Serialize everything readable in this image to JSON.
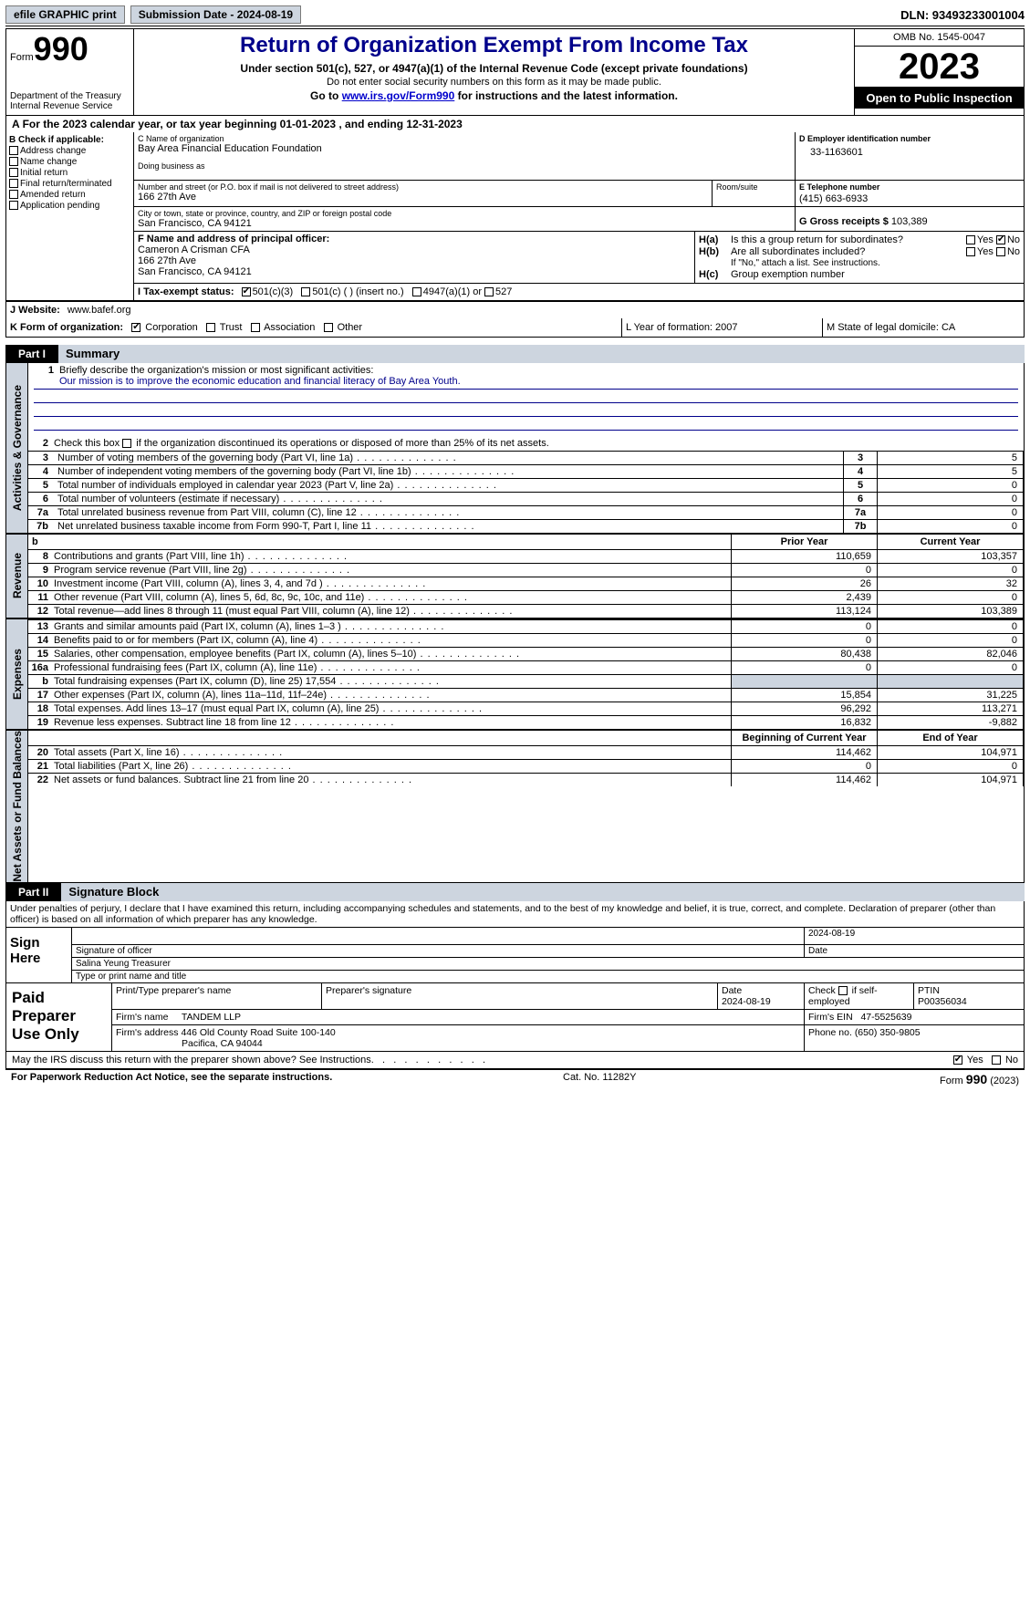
{
  "top_bar": {
    "efile_btn": "efile GRAPHIC print",
    "submission_label": "Submission Date - 2024-08-19",
    "dln": "DLN: 93493233001004"
  },
  "header": {
    "form_word": "Form",
    "form_num": "990",
    "dept": "Department of the Treasury\nInternal Revenue Service",
    "title": "Return of Organization Exempt From Income Tax",
    "sub1": "Under section 501(c), 527, or 4947(a)(1) of the Internal Revenue Code (except private foundations)",
    "sub2": "Do not enter social security numbers on this form as it may be made public.",
    "sub3_pre": "Go to ",
    "sub3_link": "www.irs.gov/Form990",
    "sub3_post": " for instructions and the latest information.",
    "omb": "OMB No. 1545-0047",
    "year": "2023",
    "inspect": "Open to Public Inspection"
  },
  "line_A": "For the 2023 calendar year, or tax year beginning 01-01-2023   , and ending 12-31-2023",
  "box_B": {
    "header": "B Check if applicable:",
    "opts": [
      "Address change",
      "Name change",
      "Initial return",
      "Final return/terminated",
      "Amended return",
      "Application pending"
    ]
  },
  "box_C": {
    "name_label": "C Name of organization",
    "name": "Bay Area Financial Education Foundation",
    "dba_label": "Doing business as",
    "addr_label": "Number and street (or P.O. box if mail is not delivered to street address)",
    "room_label": "Room/suite",
    "addr": "166 27th Ave",
    "city_label": "City or town, state or province, country, and ZIP or foreign postal code",
    "city": "San Francisco, CA  94121"
  },
  "box_D": {
    "label": "D Employer identification number",
    "value": "33-1163601"
  },
  "box_E": {
    "label": "E Telephone number",
    "value": "(415) 663-6933"
  },
  "box_G": {
    "label": "G Gross receipts $",
    "value": "103,389"
  },
  "box_F": {
    "label": "F  Name and address of principal officer:",
    "name": "Cameron A Crisman CFA",
    "addr1": "166 27th Ave",
    "addr2": "San Francisco, CA  94121"
  },
  "box_H": {
    "a_label": "H(a)",
    "a_text": "Is this a group return for subordinates?",
    "b_label": "H(b)",
    "b_text": "Are all subordinates included?",
    "b_note": "If \"No,\" attach a list. See instructions.",
    "c_label": "H(c)",
    "c_text": "Group exemption number",
    "yes": "Yes",
    "no": "No"
  },
  "row_I": {
    "label": "I   Tax-exempt status:",
    "opts": [
      "501(c)(3)",
      "501(c) (  ) (insert no.)",
      "4947(a)(1) or",
      "527"
    ]
  },
  "row_J": {
    "label": "J   Website:",
    "value": "www.bafef.org"
  },
  "row_K": {
    "label": "K Form of organization:",
    "opts": [
      "Corporation",
      "Trust",
      "Association",
      "Other"
    ],
    "L": "L Year of formation: 2007",
    "M": "M State of legal domicile: CA"
  },
  "part1": {
    "tab": "Part I",
    "title": "Summary"
  },
  "summary": {
    "l1_label": "1",
    "l1_text": "Briefly describe the organization's mission or most significant activities:",
    "l1_mission": "Our mission is to improve the economic education and financial literacy of Bay Area Youth.",
    "l2_label": "2",
    "l2_text": "Check this box         if the organization discontinued its operations or disposed of more than 25% of its net assets.",
    "lines": [
      {
        "n": "3",
        "d": "Number of voting members of the governing body (Part VI, line 1a)",
        "v": "5"
      },
      {
        "n": "4",
        "d": "Number of independent voting members of the governing body (Part VI, line 1b)",
        "v": "5"
      },
      {
        "n": "5",
        "d": "Total number of individuals employed in calendar year 2023 (Part V, line 2a)",
        "v": "0"
      },
      {
        "n": "6",
        "d": "Total number of volunteers (estimate if necessary)",
        "v": "0"
      },
      {
        "n": "7a",
        "d": "Total unrelated business revenue from Part VIII, column (C), line 12",
        "v": "0"
      },
      {
        "n": "7b",
        "d": "Net unrelated business taxable income from Form 990-T, Part I, line 11",
        "v": "0"
      }
    ],
    "vtab1": "Activities & Governance"
  },
  "revenue": {
    "vtab": "Revenue",
    "col1": "Prior Year",
    "col2": "Current Year",
    "rows": [
      {
        "n": "8",
        "d": "Contributions and grants (Part VIII, line 1h)",
        "py": "110,659",
        "cy": "103,357"
      },
      {
        "n": "9",
        "d": "Program service revenue (Part VIII, line 2g)",
        "py": "0",
        "cy": "0"
      },
      {
        "n": "10",
        "d": "Investment income (Part VIII, column (A), lines 3, 4, and 7d )",
        "py": "26",
        "cy": "32"
      },
      {
        "n": "11",
        "d": "Other revenue (Part VIII, column (A), lines 5, 6d, 8c, 9c, 10c, and 11e)",
        "py": "2,439",
        "cy": "0"
      },
      {
        "n": "12",
        "d": "Total revenue—add lines 8 through 11 (must equal Part VIII, column (A), line 12)",
        "py": "113,124",
        "cy": "103,389"
      }
    ]
  },
  "expenses": {
    "vtab": "Expenses",
    "rows": [
      {
        "n": "13",
        "d": "Grants and similar amounts paid (Part IX, column (A), lines 1–3 )",
        "py": "0",
        "cy": "0"
      },
      {
        "n": "14",
        "d": "Benefits paid to or for members (Part IX, column (A), line 4)",
        "py": "0",
        "cy": "0"
      },
      {
        "n": "15",
        "d": "Salaries, other compensation, employee benefits (Part IX, column (A), lines 5–10)",
        "py": "80,438",
        "cy": "82,046"
      },
      {
        "n": "16a",
        "d": "Professional fundraising fees (Part IX, column (A), line 11e)",
        "py": "0",
        "cy": "0"
      },
      {
        "n": "b",
        "d": "Total fundraising expenses (Part IX, column (D), line 25) 17,554",
        "py": "",
        "cy": "",
        "shade": true
      },
      {
        "n": "17",
        "d": "Other expenses (Part IX, column (A), lines 11a–11d, 11f–24e)",
        "py": "15,854",
        "cy": "31,225"
      },
      {
        "n": "18",
        "d": "Total expenses. Add lines 13–17 (must equal Part IX, column (A), line 25)",
        "py": "96,292",
        "cy": "113,271"
      },
      {
        "n": "19",
        "d": "Revenue less expenses. Subtract line 18 from line 12",
        "py": "16,832",
        "cy": "-9,882"
      }
    ]
  },
  "netassets": {
    "vtab": "Net Assets or Fund Balances",
    "col1": "Beginning of Current Year",
    "col2": "End of Year",
    "rows": [
      {
        "n": "20",
        "d": "Total assets (Part X, line 16)",
        "py": "114,462",
        "cy": "104,971"
      },
      {
        "n": "21",
        "d": "Total liabilities (Part X, line 26)",
        "py": "0",
        "cy": "0"
      },
      {
        "n": "22",
        "d": "Net assets or fund balances. Subtract line 21 from line 20",
        "py": "114,462",
        "cy": "104,971"
      }
    ]
  },
  "part2": {
    "tab": "Part II",
    "title": "Signature Block"
  },
  "perjury": "Under penalties of perjury, I declare that I have examined this return, including accompanying schedules and statements, and to the best of my knowledge and belief, it is true, correct, and complete. Declaration of preparer (other than officer) is based on all information of which preparer has any knowledge.",
  "sign": {
    "left": "Sign Here",
    "date": "2024-08-19",
    "sig_label": "Signature of officer",
    "date_label": "Date",
    "name": "Salina Yeung Treasurer",
    "name_label": "Type or print name and title"
  },
  "prep": {
    "left": "Paid Preparer Use Only",
    "h1": "Print/Type preparer's name",
    "h2": "Preparer's signature",
    "h3": "Date",
    "h3v": "2024-08-19",
    "h4": "Check        if self-employed",
    "h5": "PTIN",
    "h5v": "P00356034",
    "firm_label": "Firm's name",
    "firm": "TANDEM LLP",
    "ein_label": "Firm's EIN",
    "ein": "47-5525639",
    "addr_label": "Firm's address",
    "addr1": "446 Old County Road Suite 100-140",
    "addr2": "Pacifica, CA  94044",
    "phone_label": "Phone no.",
    "phone": "(650) 350-9805"
  },
  "discuss": {
    "text": "May the IRS discuss this return with the preparer shown above? See Instructions.",
    "yes": "Yes",
    "no": "No"
  },
  "footer": {
    "left": "For Paperwork Reduction Act Notice, see the separate instructions.",
    "mid": "Cat. No. 11282Y",
    "right_pre": "Form ",
    "right_form": "990",
    "right_post": " (2023)"
  }
}
